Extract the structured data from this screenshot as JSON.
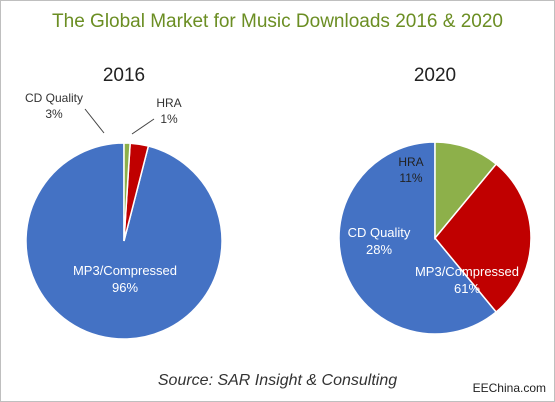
{
  "title": "The Global Market for Music Downloads 2016 & 2020",
  "source": "Source: SAR Insight & Consulting",
  "watermark": "EEChina.com",
  "chart_data": [
    {
      "type": "pie",
      "title": "2016",
      "slices": [
        {
          "label": "MP3/Compressed",
          "value": 96,
          "value_label": "96%",
          "color": "#4472c4"
        },
        {
          "label": "CD Quality",
          "value": 3,
          "value_label": "3%",
          "color": "#c00000"
        },
        {
          "label": "HRA",
          "value": 1,
          "value_label": "1%",
          "color": "#8db04a"
        }
      ]
    },
    {
      "type": "pie",
      "title": "2020",
      "slices": [
        {
          "label": "MP3/Compressed",
          "value": 61,
          "value_label": "61%",
          "color": "#4472c4"
        },
        {
          "label": "CD Quality",
          "value": 28,
          "value_label": "28%",
          "color": "#c00000"
        },
        {
          "label": "HRA",
          "value": 11,
          "value_label": "11%",
          "color": "#8db04a"
        }
      ]
    }
  ]
}
